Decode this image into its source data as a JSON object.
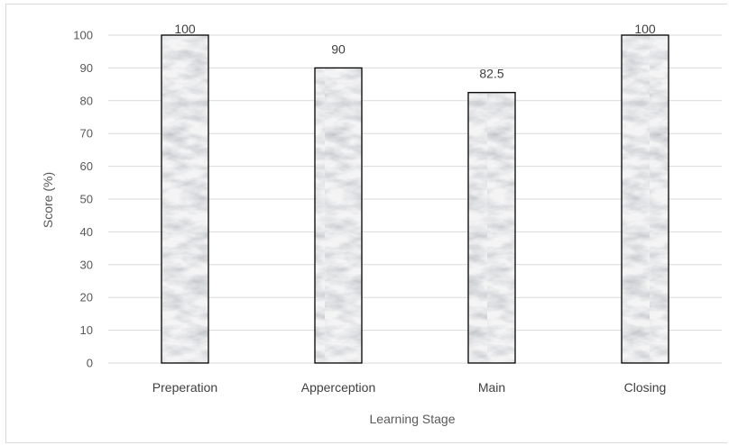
{
  "chart_data": {
    "type": "bar",
    "title": "",
    "xlabel": "Learning Stage",
    "ylabel": "Score (%)",
    "categories": [
      "Preperation",
      "Apperception",
      "Main",
      "Closing"
    ],
    "values": [
      100,
      90,
      82.5,
      100
    ],
    "data_labels": [
      "100",
      "90",
      "82.5",
      "100"
    ],
    "ylim": [
      0,
      100
    ],
    "yticks": [
      0,
      10,
      20,
      30,
      40,
      50,
      60,
      70,
      80,
      90,
      100
    ],
    "grid": true,
    "legend": "none",
    "bar_fill": "white marble texture",
    "bar_outline_color": "#000000",
    "grid_color": "#d9d9d9"
  }
}
